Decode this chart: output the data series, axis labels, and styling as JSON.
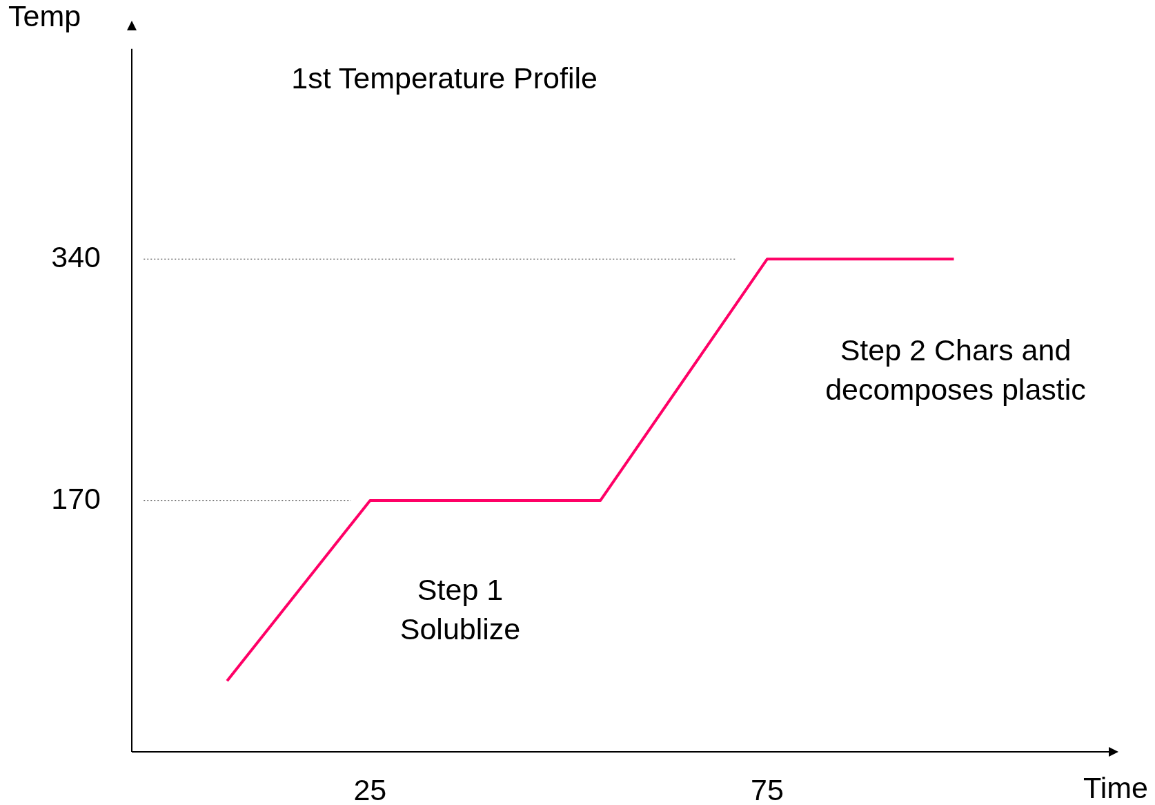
{
  "chart_data": {
    "type": "line",
    "title": "1st Temperature Profile",
    "xlabel": "Time",
    "ylabel": "Temp",
    "xlim": [
      -5,
      118
    ],
    "ylim": [
      -7,
      488
    ],
    "xticks": [
      25,
      75
    ],
    "yticks": [
      170,
      340
    ],
    "grid": false,
    "legend": false,
    "marker": "none",
    "series": [
      {
        "color": "#ff0066",
        "x": [
          7,
          25,
          54,
          75,
          98.5
        ],
        "values": [
          43,
          170,
          170,
          340,
          340
        ],
        "line_style": "solid"
      },
      {
        "color": "#333333",
        "x": [
          -3.5,
          22.6
        ],
        "values": [
          170,
          170
        ],
        "line_style": "dotted"
      },
      {
        "color": "#333333",
        "x": [
          -3.5,
          71
        ],
        "values": [
          340,
          340
        ],
        "line_style": "dotted"
      }
    ],
    "annotations": [
      "Step 1\nSolublize",
      "Step 2 Chars and\ndecomposes plastic"
    ]
  }
}
